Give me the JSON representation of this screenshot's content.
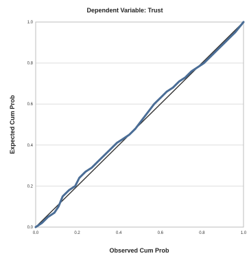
{
  "chart_data": {
    "type": "line",
    "title": "Dependent Variable: Trust",
    "xlabel": "Observed Cum Prob",
    "ylabel": "Expected Cum Prob",
    "xlim": [
      0,
      1
    ],
    "ylim": [
      0,
      1
    ],
    "grid": true,
    "x_ticks": [
      "0.0",
      "0.2",
      "0.4",
      "0.6",
      "0.8",
      "1.0"
    ],
    "y_ticks": [
      "0.0",
      "0.2",
      "0.4",
      "0.6",
      "0.8",
      "1.0"
    ],
    "reference_line": {
      "x": [
        0,
        1
      ],
      "y": [
        0,
        1
      ]
    },
    "series": [
      {
        "color": "#4a6d96",
        "x": [
          0.0,
          0.03,
          0.06,
          0.09,
          0.11,
          0.13,
          0.16,
          0.19,
          0.21,
          0.24,
          0.27,
          0.3,
          0.33,
          0.36,
          0.39,
          0.42,
          0.45,
          0.48,
          0.51,
          0.54,
          0.57,
          0.6,
          0.63,
          0.66,
          0.69,
          0.72,
          0.75,
          0.78,
          0.81,
          0.84,
          0.87,
          0.9,
          0.93,
          0.96,
          1.0
        ],
        "y": [
          0.0,
          0.02,
          0.05,
          0.07,
          0.1,
          0.15,
          0.18,
          0.2,
          0.24,
          0.27,
          0.29,
          0.32,
          0.35,
          0.38,
          0.41,
          0.43,
          0.45,
          0.48,
          0.52,
          0.56,
          0.6,
          0.63,
          0.66,
          0.68,
          0.71,
          0.73,
          0.76,
          0.78,
          0.8,
          0.83,
          0.86,
          0.89,
          0.92,
          0.95,
          1.0
        ]
      }
    ]
  }
}
